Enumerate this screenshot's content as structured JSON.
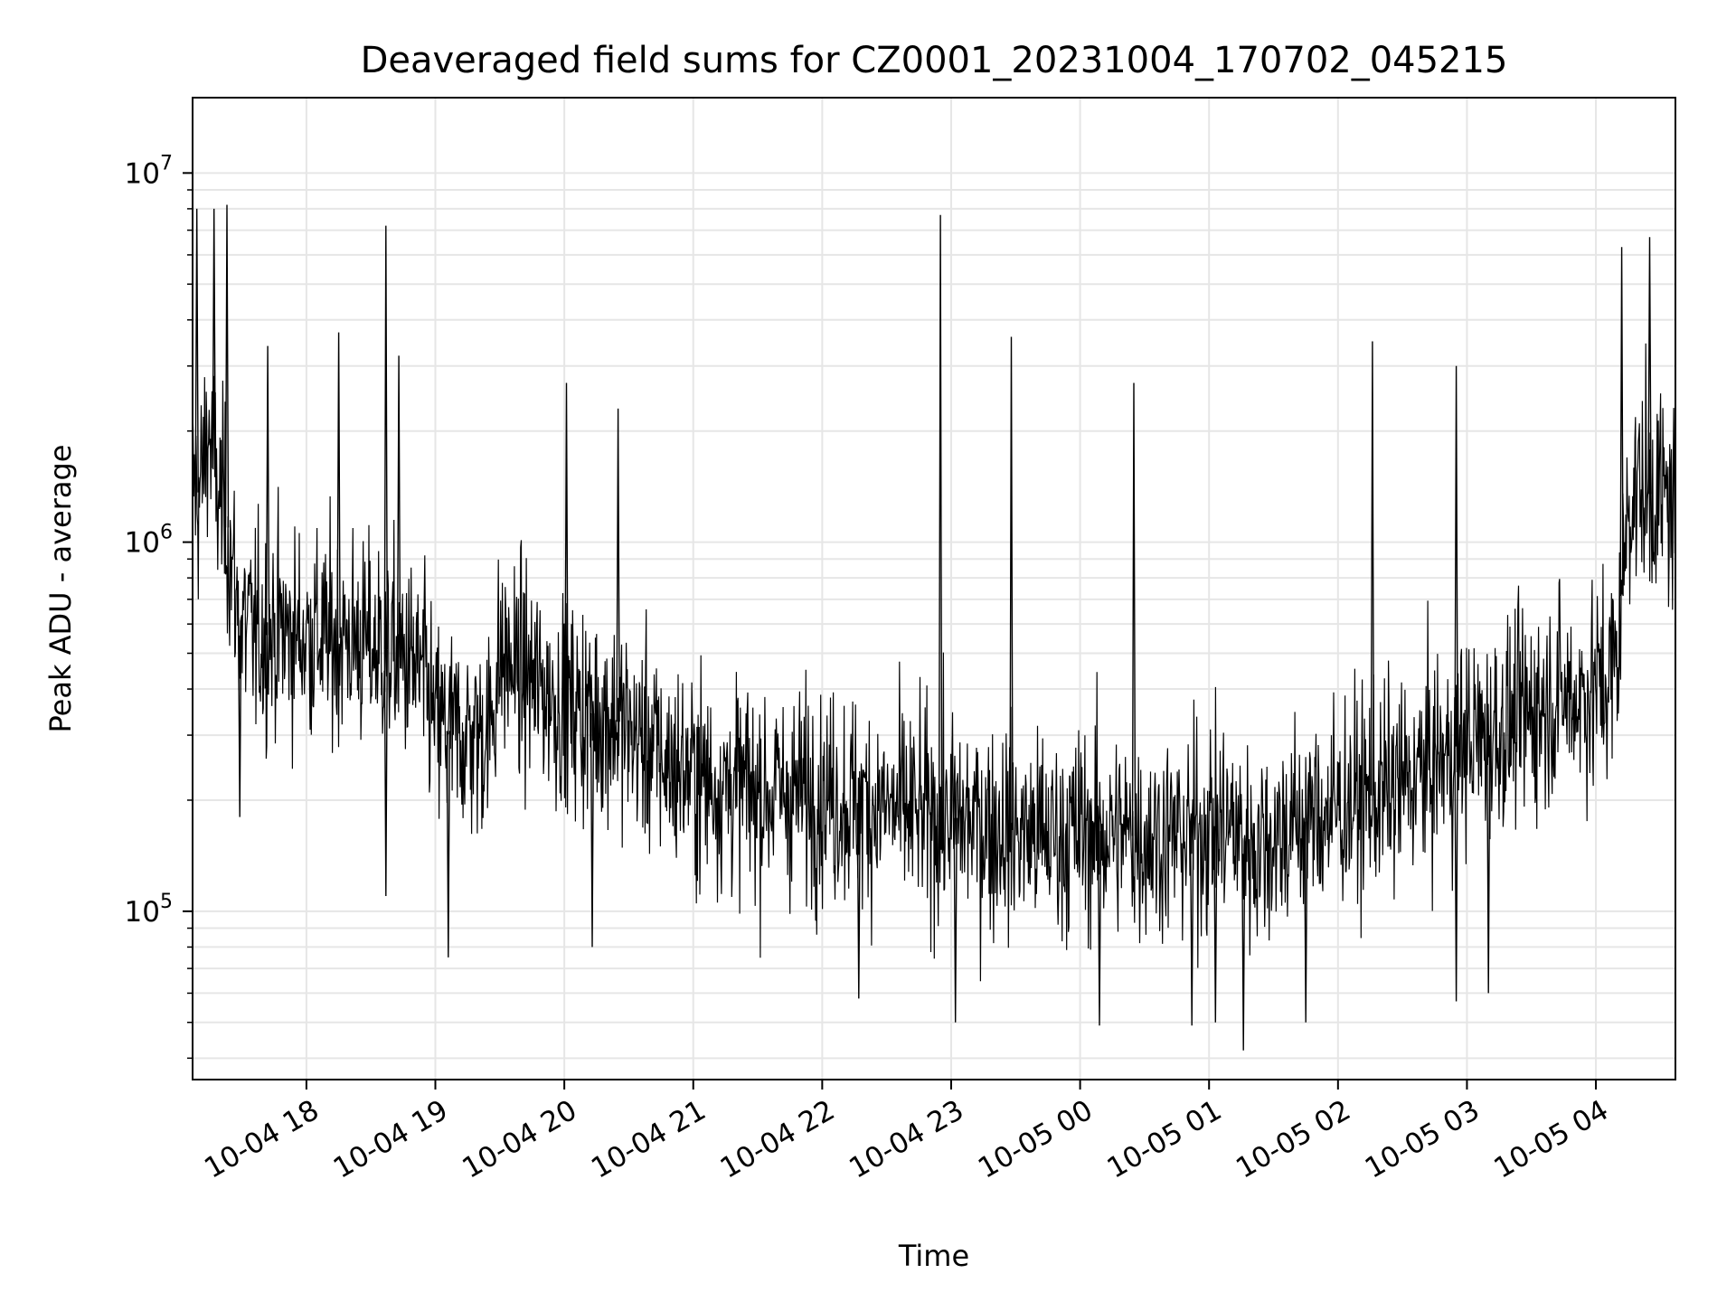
{
  "chart_data": {
    "type": "line",
    "title": "Deaveraged field sums for CZ0001_20231004_170702_045215",
    "xlabel": "Time",
    "ylabel": "Peak ADU - average",
    "yscale": "log",
    "ylim": [
      35000,
      16000000
    ],
    "xlim": [
      "2023-10-04 17:07:02",
      "2023-10-05 04:37:00"
    ],
    "grid": true,
    "line_color": "#000000",
    "grid_color": "#e6e6e6",
    "x_ticks": [
      {
        "t": "2023-10-04 18:00",
        "label": "10-04 18"
      },
      {
        "t": "2023-10-04 19:00",
        "label": "10-04 19"
      },
      {
        "t": "2023-10-04 20:00",
        "label": "10-04 20"
      },
      {
        "t": "2023-10-04 21:00",
        "label": "10-04 21"
      },
      {
        "t": "2023-10-04 22:00",
        "label": "10-04 22"
      },
      {
        "t": "2023-10-04 23:00",
        "label": "10-04 23"
      },
      {
        "t": "2023-10-05 00:00",
        "label": "10-05 00"
      },
      {
        "t": "2023-10-05 01:00",
        "label": "10-05 01"
      },
      {
        "t": "2023-10-05 02:00",
        "label": "10-05 02"
      },
      {
        "t": "2023-10-05 03:00",
        "label": "10-05 03"
      },
      {
        "t": "2023-10-05 04:00",
        "label": "10-05 04"
      }
    ],
    "y_ticks": [
      {
        "value": 100000,
        "base": "10",
        "exp": "5"
      },
      {
        "value": 1000000,
        "base": "10",
        "exp": "6"
      },
      {
        "value": 10000000,
        "base": "10",
        "exp": "7"
      }
    ],
    "series": [
      {
        "x": [
          "2023-10-04 17:07",
          "2023-10-04 17:10",
          "2023-10-04 17:12",
          "2023-10-04 17:14",
          "2023-10-04 17:16",
          "2023-10-04 17:18",
          "2023-10-04 17:20",
          "2023-10-04 17:22",
          "2023-10-04 17:24",
          "2023-10-04 17:26",
          "2023-10-04 17:28",
          "2023-10-04 17:30",
          "2023-10-04 17:33",
          "2023-10-04 17:36",
          "2023-10-04 17:40",
          "2023-10-04 17:44",
          "2023-10-04 17:48",
          "2023-10-04 17:52",
          "2023-10-04 17:56",
          "2023-10-04 18:00",
          "2023-10-04 18:05",
          "2023-10-04 18:10",
          "2023-10-04 18:15",
          "2023-10-04 18:20",
          "2023-10-04 18:25",
          "2023-10-04 18:30",
          "2023-10-04 18:35",
          "2023-10-04 18:40",
          "2023-10-04 18:45",
          "2023-10-04 18:50",
          "2023-10-04 18:55",
          "2023-10-04 19:00",
          "2023-10-04 19:05",
          "2023-10-04 19:10",
          "2023-10-04 19:15",
          "2023-10-04 19:20",
          "2023-10-04 19:25",
          "2023-10-04 19:30",
          "2023-10-04 19:35",
          "2023-10-04 19:40",
          "2023-10-04 19:45",
          "2023-10-04 19:50",
          "2023-10-04 19:55",
          "2023-10-04 20:00",
          "2023-10-04 20:08",
          "2023-10-04 20:16",
          "2023-10-04 20:24",
          "2023-10-04 20:32",
          "2023-10-04 20:40",
          "2023-10-04 20:48",
          "2023-10-04 20:56",
          "2023-10-04 21:04",
          "2023-10-04 21:12",
          "2023-10-04 21:20",
          "2023-10-04 21:28",
          "2023-10-04 21:36",
          "2023-10-04 21:44",
          "2023-10-04 21:52",
          "2023-10-04 22:00",
          "2023-10-04 22:10",
          "2023-10-04 22:20",
          "2023-10-04 22:30",
          "2023-10-04 22:40",
          "2023-10-04 22:50",
          "2023-10-04 22:55",
          "2023-10-04 23:00",
          "2023-10-04 23:10",
          "2023-10-04 23:20",
          "2023-10-04 23:30",
          "2023-10-04 23:40",
          "2023-10-04 23:50",
          "2023-10-05 00:00",
          "2023-10-05 00:10",
          "2023-10-05 00:20",
          "2023-10-05 00:30",
          "2023-10-05 00:40",
          "2023-10-05 00:50",
          "2023-10-05 01:00",
          "2023-10-05 01:10",
          "2023-10-05 01:20",
          "2023-10-05 01:30",
          "2023-10-05 01:40",
          "2023-10-05 01:50",
          "2023-10-05 02:00",
          "2023-10-05 02:10",
          "2023-10-05 02:20",
          "2023-10-05 02:30",
          "2023-10-05 02:40",
          "2023-10-05 02:50",
          "2023-10-05 03:00",
          "2023-10-05 03:10",
          "2023-10-05 03:20",
          "2023-10-05 03:30",
          "2023-10-05 03:40",
          "2023-10-05 03:50",
          "2023-10-05 04:00",
          "2023-10-05 04:05",
          "2023-10-05 04:10",
          "2023-10-05 04:15",
          "2023-10-05 04:20",
          "2023-10-05 04:25",
          "2023-10-05 04:30",
          "2023-10-05 04:36"
        ],
        "median": [
          1500000,
          1300000,
          1600000,
          2000000,
          1800000,
          1400000,
          1300000,
          1200000,
          1000000,
          800000,
          650000,
          600000,
          580000,
          560000,
          560000,
          560000,
          580000,
          560000,
          560000,
          560000,
          560000,
          540000,
          550000,
          550000,
          540000,
          520000,
          520000,
          500000,
          480000,
          460000,
          420000,
          320000,
          310000,
          300000,
          300000,
          300000,
          310000,
          480000,
          470000,
          440000,
          420000,
          400000,
          380000,
          360000,
          350000,
          340000,
          330000,
          300000,
          280000,
          250000,
          240000,
          230000,
          220000,
          220000,
          210000,
          210000,
          210000,
          210000,
          210000,
          200000,
          195000,
          190000,
          185000,
          180000,
          180000,
          180000,
          175000,
          170000,
          165000,
          160000,
          160000,
          165000,
          165000,
          160000,
          160000,
          160000,
          160000,
          170000,
          170000,
          150000,
          160000,
          170000,
          180000,
          190000,
          200000,
          210000,
          220000,
          240000,
          260000,
          290000,
          300000,
          320000,
          350000,
          380000,
          380000,
          400000,
          420000,
          480000,
          1300000,
          1400000,
          1350000,
          1350000,
          1250000
        ],
        "peaks": [
          {
            "t": "2023-10-04 17:09",
            "value": 8000000
          },
          {
            "t": "2023-10-04 17:17",
            "value": 8000000
          },
          {
            "t": "2023-10-04 17:23",
            "value": 8200000
          },
          {
            "t": "2023-10-04 17:42",
            "value": 3400000
          },
          {
            "t": "2023-10-04 18:15",
            "value": 3700000
          },
          {
            "t": "2023-10-04 18:37",
            "value": 7200000
          },
          {
            "t": "2023-10-04 18:43",
            "value": 3200000
          },
          {
            "t": "2023-10-04 20:01",
            "value": 2700000
          },
          {
            "t": "2023-10-04 20:25",
            "value": 2300000
          },
          {
            "t": "2023-10-04 22:55",
            "value": 7700000
          },
          {
            "t": "2023-10-04 23:28",
            "value": 3600000
          },
          {
            "t": "2023-10-05 00:25",
            "value": 2700000
          },
          {
            "t": "2023-10-05 02:16",
            "value": 3500000
          },
          {
            "t": "2023-10-05 02:55",
            "value": 3000000
          },
          {
            "t": "2023-10-05 04:12",
            "value": 6300000
          },
          {
            "t": "2023-10-05 04:25",
            "value": 6700000
          }
        ],
        "dips": [
          {
            "t": "2023-10-04 17:29",
            "value": 180000
          },
          {
            "t": "2023-10-04 18:37",
            "value": 110000
          },
          {
            "t": "2023-10-04 19:06",
            "value": 75000
          },
          {
            "t": "2023-10-04 20:13",
            "value": 80000
          },
          {
            "t": "2023-10-04 22:17",
            "value": 58000
          },
          {
            "t": "2023-10-04 23:02",
            "value": 50000
          },
          {
            "t": "2023-10-05 00:09",
            "value": 49000
          },
          {
            "t": "2023-10-05 00:52",
            "value": 49000
          },
          {
            "t": "2023-10-05 01:03",
            "value": 50000
          },
          {
            "t": "2023-10-05 01:16",
            "value": 42000
          },
          {
            "t": "2023-10-05 01:45",
            "value": 50000
          },
          {
            "t": "2023-10-05 02:55",
            "value": 57000
          },
          {
            "t": "2023-10-05 03:10",
            "value": 60000
          }
        ]
      }
    ]
  }
}
